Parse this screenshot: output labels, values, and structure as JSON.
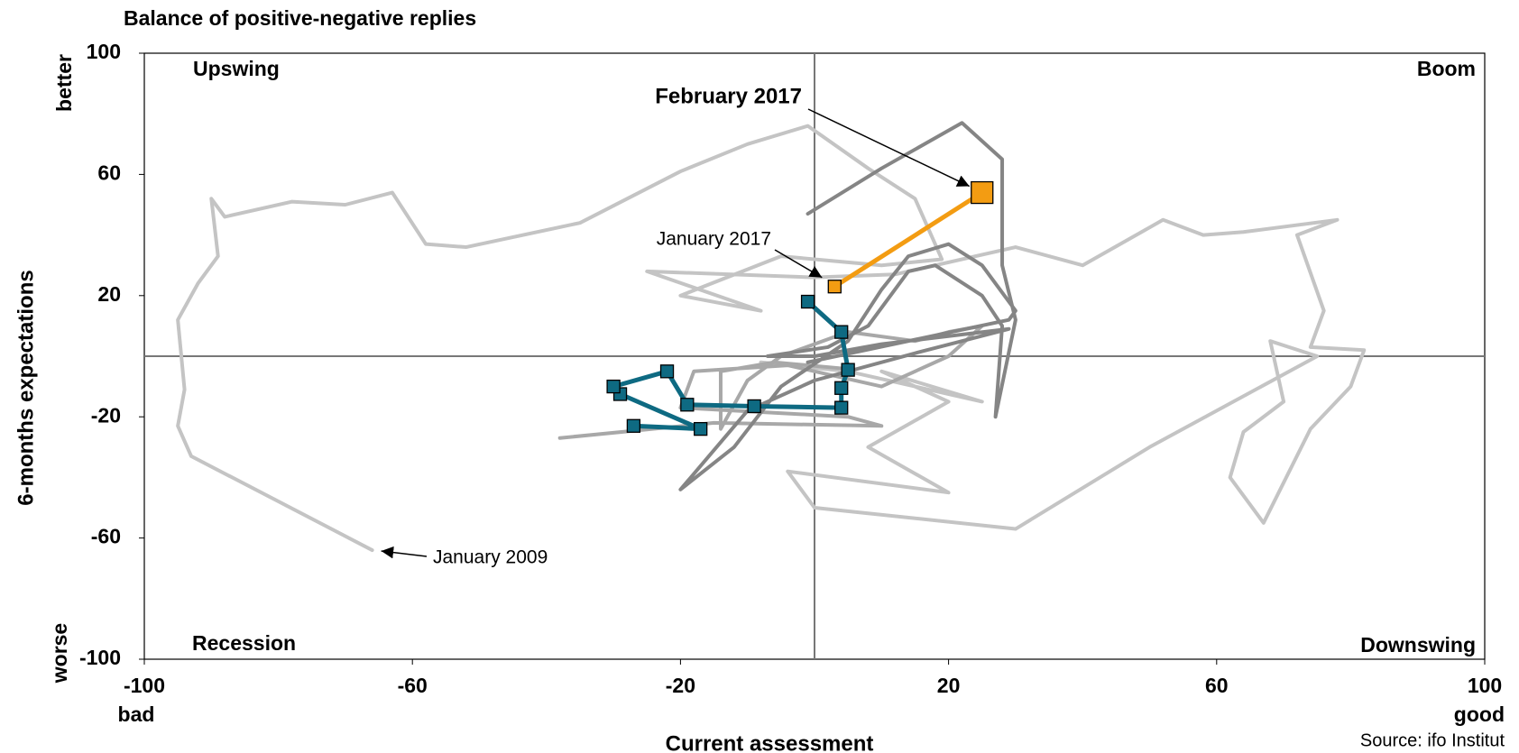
{
  "chart_data": {
    "type": "line",
    "title": "Balance of positive-negative replies",
    "x_label": "Current assessment",
    "y_label": "6-months expectations",
    "x_low_label": "bad",
    "x_high_label": "good",
    "y_low_label": "worse",
    "y_high_label": "better",
    "quadrants": [
      "Upswing",
      "Boom",
      "Recession",
      "Downswing"
    ],
    "source": "Source: ifo Institut",
    "xlim": [
      -100,
      100
    ],
    "ylim": [
      -100,
      100
    ],
    "xticks": [
      -100,
      -60,
      -20,
      20,
      60,
      100
    ],
    "yticks": [
      -100,
      -60,
      -20,
      20,
      60,
      100
    ],
    "series": [
      {
        "color": "#c4c4c4",
        "x": [
          -66,
          -93,
          -95,
          -94,
          -95,
          -92,
          -89,
          -90,
          -88,
          -78,
          -70,
          -63,
          -58,
          -52,
          -35,
          -20,
          -10,
          -1,
          8,
          15,
          19,
          10,
          -5,
          -20,
          -8,
          -25,
          0,
          12,
          30,
          40,
          52,
          58,
          64,
          78,
          72,
          76,
          74,
          82,
          80,
          74,
          67,
          62,
          64,
          70,
          68,
          75,
          50,
          30,
          0,
          -4,
          20,
          8,
          20,
          10,
          25,
          15,
          5,
          -8
        ],
        "values": [
          -64,
          -33,
          -23,
          -11,
          12,
          24,
          33,
          52,
          46,
          51,
          50,
          54,
          37,
          36,
          44,
          61,
          70,
          76,
          62,
          52,
          32,
          30,
          33,
          20,
          15,
          28,
          26,
          27,
          36,
          30,
          45,
          40,
          41,
          45,
          40,
          15,
          3,
          2,
          -10,
          -24,
          -55,
          -40,
          -25,
          -15,
          5,
          0,
          -30,
          -57,
          -50,
          -38,
          -45,
          -30,
          -15,
          -5,
          -15,
          -10,
          -5,
          -2
        ]
      },
      {
        "color": "#a8a8a8",
        "x": [
          -38,
          -15,
          10,
          5,
          -20,
          -18,
          -4,
          10,
          20,
          25,
          20,
          15,
          5,
          -5,
          -10,
          -14,
          -14,
          -6,
          4
        ],
        "values": [
          -27,
          -22,
          -23,
          -20,
          -17,
          -5,
          -3,
          -10,
          0,
          10,
          8,
          5,
          8,
          0,
          -8,
          -24,
          -5,
          -2,
          -4
        ]
      },
      {
        "color": "#858585",
        "x": [
          -1,
          10,
          22,
          28,
          28,
          30,
          27,
          28,
          25,
          18,
          14,
          8,
          2,
          -7,
          0,
          10,
          29,
          15,
          0,
          -10,
          -20,
          -12,
          -5,
          5,
          10,
          14,
          20,
          25,
          30,
          29,
          -1
        ],
        "values": [
          47,
          62,
          77,
          65,
          30,
          12,
          -20,
          10,
          20,
          30,
          28,
          10,
          3,
          0,
          0,
          4,
          9,
          1,
          -8,
          -18,
          -44,
          -30,
          -10,
          5,
          22,
          33,
          37,
          30,
          15,
          12,
          -2
        ]
      },
      {
        "color": "#0e6a82",
        "marker": "square",
        "x": [
          -27,
          -17,
          -29,
          -30,
          -22,
          -19,
          -9,
          4,
          4,
          5,
          4,
          -1
        ],
        "values": [
          -23,
          -24,
          -12.5,
          -10,
          -5,
          -16,
          -16.5,
          -17,
          -10.5,
          -4.5,
          8,
          18
        ]
      },
      {
        "color": "#f39c12",
        "marker": "square",
        "x": [
          3,
          25
        ],
        "values": [
          23,
          54
        ]
      }
    ],
    "annotations": [
      {
        "text": "February 2017",
        "x": 25,
        "y": 54
      },
      {
        "text": "January 2017",
        "x": 3,
        "y": 23
      },
      {
        "text": "January 2009",
        "x": -66,
        "y": -64
      }
    ]
  }
}
